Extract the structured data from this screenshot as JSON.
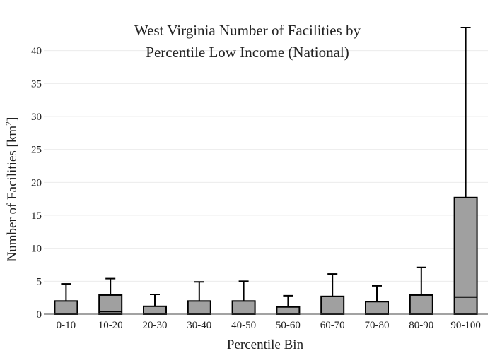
{
  "chart_data": {
    "type": "box",
    "title_line1": "West Virginia Number of Facilities by",
    "title_line2": "Percentile Low Income (National)",
    "xlabel": "Percentile Bin",
    "ylabel_main": "Number of Facilities  [km",
    "ylabel_sup": "2",
    "ylabel_end": "]",
    "ylim": [
      0,
      45
    ],
    "yticks": [
      0,
      5,
      10,
      15,
      20,
      25,
      30,
      35,
      40
    ],
    "grid": true,
    "legend": "none",
    "box_color": "#a0a0a0",
    "categories": [
      "0-10",
      "10-20",
      "20-30",
      "30-40",
      "40-50",
      "50-60",
      "60-70",
      "70-80",
      "80-90",
      "90-100"
    ],
    "boxes": [
      {
        "min": 0,
        "q1": 0,
        "median": 0,
        "q3": 2.0,
        "max": 4.6
      },
      {
        "min": 0,
        "q1": 0,
        "median": 0.4,
        "q3": 2.9,
        "max": 5.4
      },
      {
        "min": 0,
        "q1": 0,
        "median": 0,
        "q3": 1.2,
        "max": 3.0
      },
      {
        "min": 0,
        "q1": 0,
        "median": 0,
        "q3": 2.0,
        "max": 4.9
      },
      {
        "min": 0,
        "q1": 0,
        "median": 0,
        "q3": 2.0,
        "max": 5.0
      },
      {
        "min": 0,
        "q1": 0,
        "median": 0,
        "q3": 1.1,
        "max": 2.8
      },
      {
        "min": 0,
        "q1": 0,
        "median": 0,
        "q3": 2.7,
        "max": 6.1
      },
      {
        "min": 0,
        "q1": 0,
        "median": 0,
        "q3": 1.9,
        "max": 4.3
      },
      {
        "min": 0,
        "q1": 0,
        "median": 0,
        "q3": 2.9,
        "max": 7.1
      },
      {
        "min": 0,
        "q1": 0,
        "median": 2.6,
        "q3": 17.7,
        "max": 43.5
      }
    ]
  }
}
